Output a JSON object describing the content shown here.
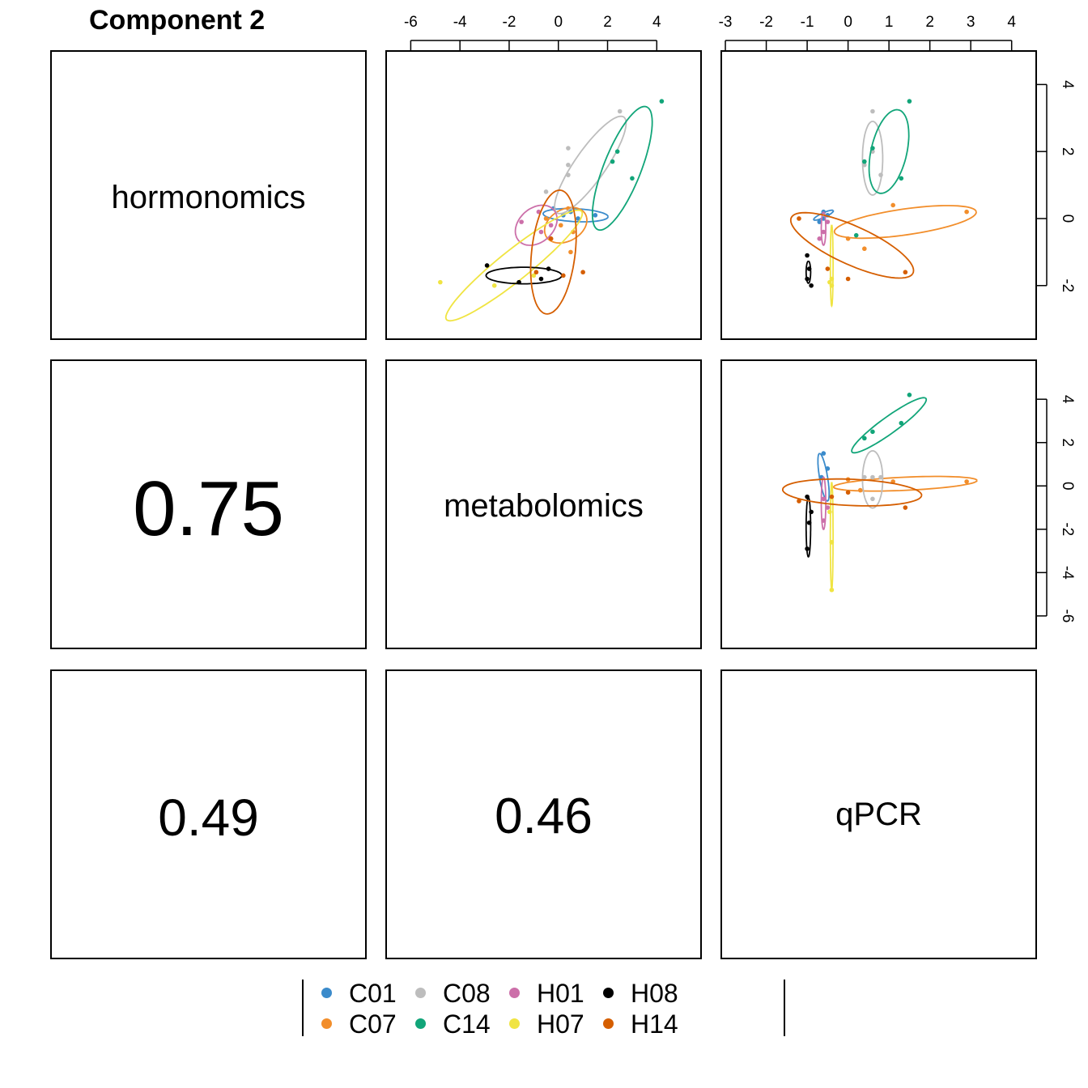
{
  "title": "Component 2",
  "blocks": [
    "hormonomics",
    "metabolomics",
    "qPCR"
  ],
  "correlations": [
    {
      "pair": "metabolomics-hormonomics",
      "value": "0.75"
    },
    {
      "pair": "qPCR-hormonomics",
      "value": "0.49"
    },
    {
      "pair": "qPCR-metabolomics",
      "value": "0.46"
    }
  ],
  "legend": [
    {
      "name": "C01",
      "color": "#3B8BCB"
    },
    {
      "name": "C07",
      "color": "#F28E2B"
    },
    {
      "name": "C08",
      "color": "#BDBDBD"
    },
    {
      "name": "C14",
      "color": "#11A579"
    },
    {
      "name": "H01",
      "color": "#CC6FA9"
    },
    {
      "name": "H07",
      "color": "#F0E442"
    },
    {
      "name": "H08",
      "color": "#000000"
    },
    {
      "name": "H14",
      "color": "#D55E00"
    }
  ],
  "chart_data": {
    "type": "scatter",
    "title": "Component 2",
    "axes": {
      "top_metabolomics": {
        "range": [
          -7,
          5.8
        ],
        "ticks": [
          -6,
          -4,
          -2,
          0,
          2,
          4
        ]
      },
      "top_qPCR": {
        "range": [
          -3.1,
          4.6
        ],
        "ticks": [
          -3,
          -2,
          -1,
          0,
          1,
          2,
          3,
          4
        ]
      },
      "right_hormonomics": {
        "range": [
          -3.6,
          5.0
        ],
        "ticks": [
          -2,
          0,
          2,
          4
        ]
      },
      "right_metabolomics": {
        "range": [
          -7.5,
          5.8
        ],
        "ticks": [
          -6,
          -4,
          -2,
          0,
          2,
          4
        ]
      }
    },
    "panels": [
      {
        "id": "metabolomics-vs-hormonomics",
        "x_block": "metabolomics",
        "y_block": "hormonomics",
        "groups": [
          {
            "name": "C01",
            "points": [
              [
                -0.2,
                0.3
              ],
              [
                0.5,
                0.2
              ],
              [
                1.5,
                0.1
              ],
              [
                0.2,
                0.1
              ],
              [
                0.8,
                0.0
              ]
            ],
            "ellipse": {
              "cx": 0.7,
              "cy": 0.1,
              "rx": 2.4,
              "ry": 0.35,
              "angle": -2
            }
          },
          {
            "name": "C07",
            "points": [
              [
                0.4,
                0.3
              ],
              [
                0.6,
                -0.4
              ],
              [
                0.1,
                -0.2
              ],
              [
                -0.3,
                -0.6
              ],
              [
                0.5,
                -1.0
              ],
              [
                -0.5,
                0.0
              ]
            ],
            "ellipse": {
              "cx": 0.3,
              "cy": -0.2,
              "rx": 1.6,
              "ry": 0.9,
              "angle": 15
            }
          },
          {
            "name": "C08",
            "points": [
              [
                0.4,
                2.1
              ],
              [
                0.4,
                1.6
              ],
              [
                0.4,
                1.3
              ],
              [
                2.5,
                3.2
              ],
              [
                -0.5,
                0.8
              ]
            ],
            "ellipse": {
              "cx": 1.3,
              "cy": 1.6,
              "rx": 3.6,
              "ry": 1.0,
              "angle": 45
            }
          },
          {
            "name": "C14",
            "points": [
              [
                4.2,
                3.5
              ],
              [
                2.4,
                2.0
              ],
              [
                2.2,
                1.7
              ],
              [
                3.0,
                1.2
              ]
            ],
            "ellipse": {
              "cx": 2.6,
              "cy": 1.5,
              "rx": 3.8,
              "ry": 1.3,
              "angle": 60
            }
          },
          {
            "name": "H01",
            "points": [
              [
                -1.5,
                -0.1
              ],
              [
                -0.7,
                -0.4
              ],
              [
                -0.3,
                -0.2
              ],
              [
                -0.8,
                0.2
              ]
            ],
            "ellipse": {
              "cx": -0.9,
              "cy": -0.2,
              "rx": 1.6,
              "ry": 1.0,
              "angle": 20
            }
          },
          {
            "name": "H07",
            "points": [
              [
                -4.8,
                -1.9
              ],
              [
                -2.6,
                -2.0
              ],
              [
                -1.0,
                -1.7
              ]
            ],
            "ellipse": {
              "cx": -1.8,
              "cy": -1.4,
              "rx": 5.8,
              "ry": 0.9,
              "angle": 30
            }
          },
          {
            "name": "H08",
            "points": [
              [
                -2.9,
                -1.4
              ],
              [
                -1.6,
                -1.9
              ],
              [
                -0.7,
                -1.8
              ],
              [
                -0.4,
                -1.5
              ]
            ],
            "ellipse": {
              "cx": -1.4,
              "cy": -1.7,
              "rx": 2.8,
              "ry": 0.45,
              "angle": 0
            }
          },
          {
            "name": "H14",
            "points": [
              [
                -0.9,
                -1.6
              ],
              [
                0.2,
                -1.7
              ],
              [
                1.0,
                -1.6
              ],
              [
                -0.3,
                -0.6
              ]
            ],
            "ellipse": {
              "cx": -0.2,
              "cy": -1.0,
              "rx": 3.4,
              "ry": 1.6,
              "angle": 80
            }
          }
        ]
      },
      {
        "id": "qPCR-vs-hormonomics",
        "x_block": "qPCR",
        "y_block": "hormonomics",
        "groups": [
          {
            "name": "C01",
            "points": [
              [
                -0.6,
                0.2
              ],
              [
                -0.5,
                0.1
              ],
              [
                -0.7,
                -0.1
              ],
              [
                -0.6,
                0.0
              ]
            ],
            "ellipse": {
              "cx": -0.6,
              "cy": 0.1,
              "rx": 0.5,
              "ry": 0.12,
              "angle": 30
            }
          },
          {
            "name": "C07",
            "points": [
              [
                2.9,
                0.2
              ],
              [
                1.1,
                0.4
              ],
              [
                0.0,
                -0.6
              ],
              [
                0.4,
                -0.9
              ]
            ],
            "ellipse": {
              "cx": 1.4,
              "cy": -0.1,
              "rx": 3.2,
              "ry": 0.7,
              "angle": 10
            }
          },
          {
            "name": "C08",
            "points": [
              [
                0.6,
                3.2
              ],
              [
                0.6,
                2.0
              ],
              [
                0.4,
                1.6
              ],
              [
                0.8,
                1.3
              ]
            ],
            "ellipse": {
              "cx": 0.6,
              "cy": 1.8,
              "rx": 2.0,
              "ry": 0.45,
              "angle": 90
            }
          },
          {
            "name": "C14",
            "points": [
              [
                1.5,
                3.5
              ],
              [
                0.6,
                2.1
              ],
              [
                0.4,
                1.7
              ],
              [
                1.3,
                1.2
              ],
              [
                0.2,
                -0.5
              ]
            ],
            "ellipse": {
              "cx": 1.0,
              "cy": 2.0,
              "rx": 2.3,
              "ry": 0.8,
              "angle": 80
            }
          },
          {
            "name": "H01",
            "points": [
              [
                -0.6,
                -0.4
              ],
              [
                -0.5,
                -0.1
              ],
              [
                -0.7,
                -0.6
              ]
            ],
            "ellipse": {
              "cx": -0.6,
              "cy": -0.3,
              "rx": 0.9,
              "ry": 0.1,
              "angle": 90
            }
          },
          {
            "name": "H07",
            "points": [
              [
                -0.4,
                -1.8
              ],
              [
                -0.4,
                -2.0
              ],
              [
                -0.45,
                -1.9
              ]
            ],
            "ellipse": {
              "cx": -0.4,
              "cy": -1.4,
              "rx": 2.2,
              "ry": 0.06,
              "angle": 90
            }
          },
          {
            "name": "H08",
            "points": [
              [
                -0.95,
                -1.5
              ],
              [
                -1.0,
                -1.8
              ],
              [
                -0.9,
                -2.0
              ],
              [
                -1.0,
                -1.1
              ]
            ],
            "ellipse": {
              "cx": -0.97,
              "cy": -1.6,
              "rx": 0.6,
              "ry": 0.1,
              "angle": 90
            }
          },
          {
            "name": "H14",
            "points": [
              [
                -1.2,
                0.0
              ],
              [
                -0.5,
                -1.5
              ],
              [
                1.4,
                -1.6
              ],
              [
                0.0,
                -1.8
              ]
            ],
            "ellipse": {
              "cx": 0.1,
              "cy": -0.8,
              "rx": 3.1,
              "ry": 1.0,
              "angle": -30
            }
          }
        ]
      },
      {
        "id": "qPCR-vs-metabolomics",
        "x_block": "qPCR",
        "y_block": "metabolomics",
        "groups": [
          {
            "name": "C01",
            "points": [
              [
                -0.6,
                1.5
              ],
              [
                -0.5,
                0.8
              ],
              [
                -0.65,
                0.4
              ]
            ],
            "ellipse": {
              "cx": -0.6,
              "cy": 0.4,
              "rx": 2.0,
              "ry": 0.18,
              "angle": 95
            }
          },
          {
            "name": "C07",
            "points": [
              [
                2.9,
                0.2
              ],
              [
                1.1,
                0.2
              ],
              [
                0.0,
                0.3
              ],
              [
                0.3,
                -0.2
              ]
            ],
            "ellipse": {
              "cx": 1.4,
              "cy": 0.1,
              "rx": 3.2,
              "ry": 0.55,
              "angle": 5
            }
          },
          {
            "name": "C08",
            "points": [
              [
                0.4,
                0.4
              ],
              [
                0.6,
                0.4
              ],
              [
                0.8,
                0.4
              ],
              [
                0.6,
                -0.6
              ]
            ],
            "ellipse": {
              "cx": 0.6,
              "cy": 0.3,
              "rx": 2.4,
              "ry": 0.45,
              "angle": 90
            }
          },
          {
            "name": "C14",
            "points": [
              [
                1.5,
                4.2
              ],
              [
                1.3,
                2.9
              ],
              [
                0.6,
                2.5
              ],
              [
                0.4,
                2.2
              ]
            ],
            "ellipse": {
              "cx": 1.0,
              "cy": 2.8,
              "rx": 2.8,
              "ry": 0.5,
              "angle": 55
            }
          },
          {
            "name": "H01",
            "points": [
              [
                -0.6,
                -1.6
              ],
              [
                -0.5,
                -1.0
              ],
              [
                -0.6,
                -0.6
              ]
            ],
            "ellipse": {
              "cx": -0.6,
              "cy": -0.8,
              "rx": 2.2,
              "ry": 0.1,
              "angle": 90
            }
          },
          {
            "name": "H07",
            "points": [
              [
                -0.4,
                -2.6
              ],
              [
                -0.4,
                -4.8
              ],
              [
                -0.45,
                -1.2
              ]
            ],
            "ellipse": {
              "cx": -0.4,
              "cy": -2.3,
              "rx": 4.5,
              "ry": 0.06,
              "angle": 90
            }
          },
          {
            "name": "H08",
            "points": [
              [
                -1.0,
                -0.5
              ],
              [
                -0.95,
                -1.7
              ],
              [
                -1.0,
                -2.9
              ],
              [
                -0.9,
                -1.2
              ]
            ],
            "ellipse": {
              "cx": -0.97,
              "cy": -1.9,
              "rx": 2.5,
              "ry": 0.1,
              "angle": 90
            }
          },
          {
            "name": "H14",
            "points": [
              [
                -1.2,
                -0.7
              ],
              [
                0.0,
                -0.3
              ],
              [
                1.4,
                -1.0
              ],
              [
                -0.4,
                -0.5
              ]
            ],
            "ellipse": {
              "cx": 0.1,
              "cy": -0.3,
              "rx": 3.1,
              "ry": 1.1,
              "angle": -5
            }
          }
        ]
      }
    ]
  }
}
